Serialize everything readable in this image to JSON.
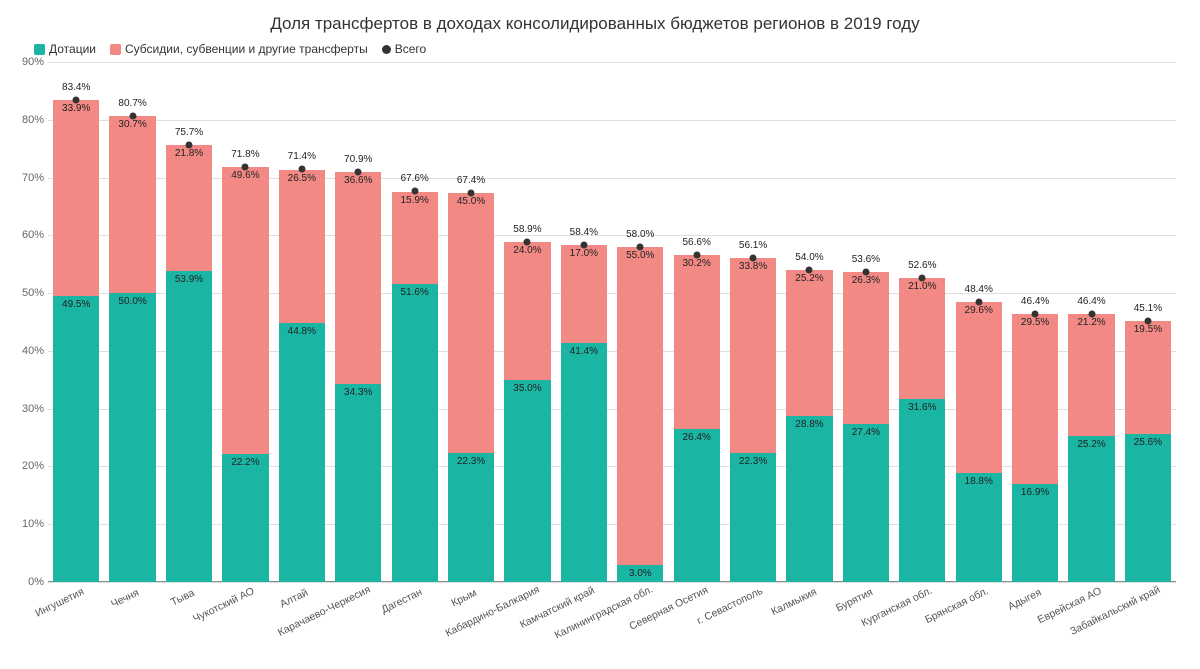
{
  "title": "Доля трансфертов в доходах консолидированных бюджетов регионов в 2019 году",
  "legend": {
    "series1": "Дотации",
    "series2": "Субсидии, субвенции и другие трансферты",
    "series3": "Всего"
  },
  "chart": {
    "type": "stacked-bar",
    "y_max": 90,
    "y_tick_step": 10,
    "y_unit": "%",
    "background_color": "#ffffff",
    "grid_color": "#e0e0e0",
    "axis_color": "#888888",
    "label_fontsize": 10,
    "title_fontsize": 17,
    "colors": {
      "series1": "#1bb5a4",
      "series2": "#f38985",
      "total_dot": "#333333"
    },
    "categories": [
      {
        "name": "Ингушетия",
        "v1": 49.5,
        "v2": 33.9,
        "total": 83.4
      },
      {
        "name": "Чечня",
        "v1": 50.0,
        "v2": 30.7,
        "total": 80.7
      },
      {
        "name": "Тыва",
        "v1": 53.9,
        "v2": 21.8,
        "total": 75.7
      },
      {
        "name": "Чукотский АО",
        "v1": 22.2,
        "v2": 49.6,
        "total": 71.8
      },
      {
        "name": "Алтай",
        "v1": 44.8,
        "v2": 26.5,
        "total": 71.4
      },
      {
        "name": "Карачаево-Черкесия",
        "v1": 34.3,
        "v2": 36.6,
        "total": 70.9
      },
      {
        "name": "Дагестан",
        "v1": 51.6,
        "v2": 15.9,
        "total": 67.6
      },
      {
        "name": "Крым",
        "v1": 22.3,
        "v2": 45.0,
        "total": 67.4
      },
      {
        "name": "Кабардино-Балкария",
        "v1": 35.0,
        "v2": 24.0,
        "total": 58.9
      },
      {
        "name": "Камчатский край",
        "v1": 41.4,
        "v2": 17.0,
        "total": 58.4
      },
      {
        "name": "Калининградская обл.",
        "v1": 3.0,
        "v2": 55.0,
        "total": 58.0
      },
      {
        "name": "Северная Осетия",
        "v1": 26.4,
        "v2": 30.2,
        "total": 56.6
      },
      {
        "name": "г. Севастополь",
        "v1": 22.3,
        "v2": 33.8,
        "total": 56.1
      },
      {
        "name": "Калмыкия",
        "v1": 28.8,
        "v2": 25.2,
        "total": 54.0
      },
      {
        "name": "Бурятия",
        "v1": 27.4,
        "v2": 26.3,
        "total": 53.6
      },
      {
        "name": "Курганская обл.",
        "v1": 31.6,
        "v2": 21.0,
        "total": 52.6
      },
      {
        "name": "Брянская обл.",
        "v1": 18.8,
        "v2": 29.6,
        "total": 48.4
      },
      {
        "name": "Адыгея",
        "v1": 16.9,
        "v2": 29.5,
        "total": 46.4
      },
      {
        "name": "Еврейская АО",
        "v1": 25.2,
        "v2": 21.2,
        "total": 46.4
      },
      {
        "name": "Забайкальский край",
        "v1": 25.6,
        "v2": 19.5,
        "total": 45.1
      }
    ]
  }
}
